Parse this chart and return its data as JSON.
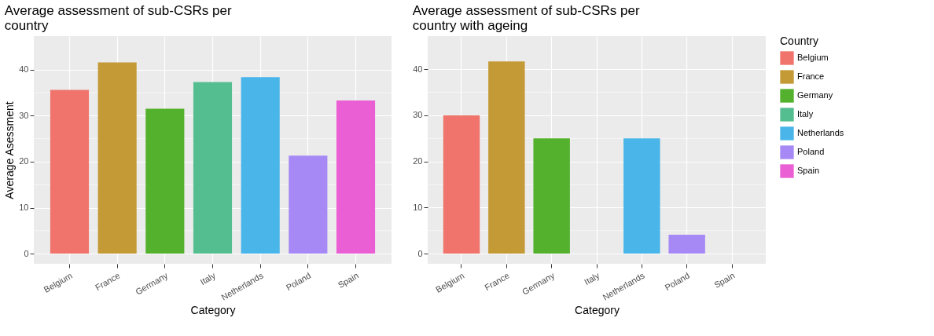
{
  "chart_data": [
    {
      "type": "bar",
      "title": "Average assessment of sub-CSRs per country",
      "xlabel": "Category",
      "ylabel": "Average Asessment",
      "categories": [
        "Belgium",
        "France",
        "Germany",
        "Italy",
        "Netherlands",
        "Poland",
        "Spain"
      ],
      "values": [
        35.6,
        41.6,
        31.5,
        37.3,
        38.4,
        21.3,
        33.3
      ],
      "colors": [
        "#f0746b",
        "#c49a36",
        "#53b12d",
        "#55be91",
        "#4ab5e8",
        "#a689f5",
        "#eb5fd5"
      ],
      "ylim": [
        -2.2,
        47.3
      ],
      "yticks": [
        0,
        10,
        20,
        30,
        40
      ],
      "grid": true
    },
    {
      "type": "bar",
      "title": "Average assessment of sub-CSRs per country with ageing",
      "xlabel": "Category",
      "legend_title": "Country",
      "categories": [
        "Belgium",
        "France",
        "Germany",
        "Italy",
        "Netherlands",
        "Poland",
        "Spain"
      ],
      "stacked": true,
      "series": [
        {
          "name": "Belgium",
          "color": "#f0746b",
          "values": [
            30.0,
            null,
            null,
            null,
            null,
            null,
            null
          ]
        },
        {
          "name": "France",
          "color": "#c49a36",
          "values": [
            null,
            41.7,
            null,
            null,
            null,
            null,
            null
          ]
        },
        {
          "name": "Germany",
          "color": "#53b12d",
          "values": [
            null,
            null,
            25.0,
            null,
            null,
            null,
            null
          ]
        },
        {
          "name": "Italy",
          "color": "#55be91",
          "values": [
            null,
            null,
            null,
            0,
            null,
            null,
            null
          ]
        },
        {
          "name": "Netherlands",
          "color": "#4ab5e8",
          "values": [
            null,
            null,
            null,
            null,
            25.0,
            null,
            null
          ]
        },
        {
          "name": "Poland",
          "color": "#a689f5",
          "values": [
            null,
            null,
            null,
            null,
            null,
            4.1,
            null
          ]
        },
        {
          "name": "Spain",
          "color": "#eb5fd5",
          "values": [
            null,
            null,
            null,
            null,
            null,
            null,
            0
          ]
        }
      ],
      "ylim": [
        -2.2,
        47.2
      ],
      "yticks": [
        0,
        10,
        20,
        30,
        40
      ],
      "grid": true,
      "legend": "right"
    }
  ]
}
